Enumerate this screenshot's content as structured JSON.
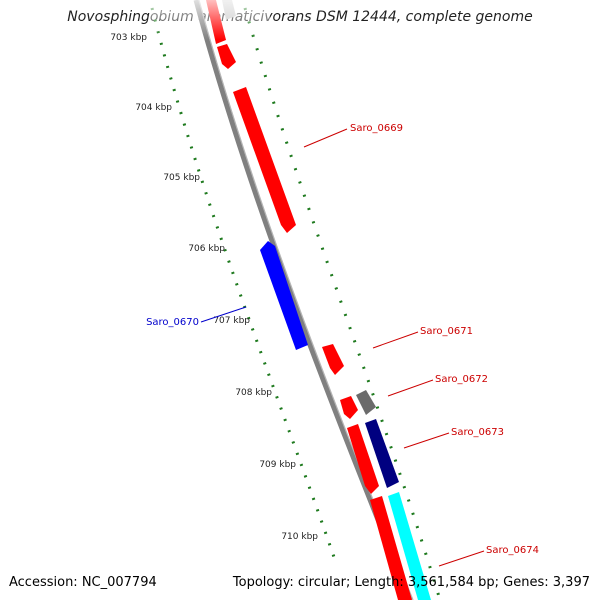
{
  "title": "Novosphingobium aromaticivorans DSM 12444, complete genome",
  "accession": "Accession: NC_007794",
  "topology": "Topology: circular; Length: 3,561,584 bp; Genes: 3,397",
  "colors": {
    "forward_gene": "#ff0000",
    "reverse_gene": "#0000ff",
    "backbone": "#808080",
    "tick": "#1e7a1e",
    "label_forward": "#cc0000",
    "label_reverse": "#0000cc",
    "cds_dark": "#6b6b6b",
    "cds_navy": "#000080",
    "cds_cyan": "#00ffff"
  },
  "ticks": [
    {
      "label": "703 kbp"
    },
    {
      "label": "704 kbp"
    },
    {
      "label": "705 kbp"
    },
    {
      "label": "706 kbp"
    },
    {
      "label": "707 kbp"
    },
    {
      "label": "708 kbp"
    },
    {
      "label": "709 kbp"
    },
    {
      "label": "710 kbp"
    }
  ],
  "genes": [
    {
      "label": "Saro_0669",
      "strand": "forward"
    },
    {
      "label": "Saro_0670",
      "strand": "reverse"
    },
    {
      "label": "Saro_0671",
      "strand": "forward"
    },
    {
      "label": "Saro_0672",
      "strand": "forward"
    },
    {
      "label": "Saro_0673",
      "strand": "forward"
    },
    {
      "label": "Saro_0674",
      "strand": "forward"
    }
  ]
}
